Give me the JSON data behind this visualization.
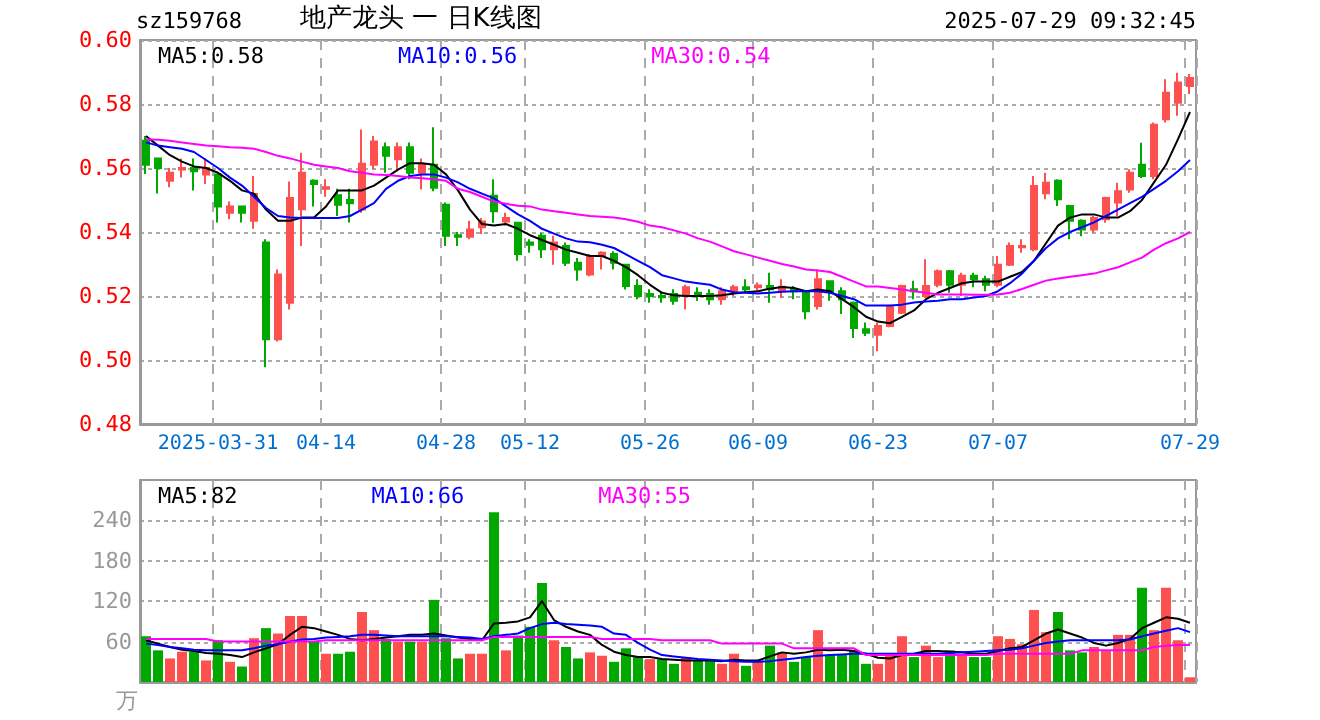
{
  "chart_data": [
    {
      "type": "candlestick",
      "title": "地产龙头 一 日K线图",
      "subtitle": "sz159768",
      "annotations": [
        "2025-07-29 09:32:45"
      ],
      "categories": [
        null,
        null,
        null,
        null,
        null,
        null,
        "2025-03-31",
        null,
        null,
        null,
        null,
        null,
        null,
        null,
        null,
        "04-14",
        null,
        null,
        null,
        null,
        null,
        null,
        null,
        null,
        null,
        "04-28",
        null,
        null,
        null,
        null,
        null,
        null,
        "05-12",
        null,
        null,
        null,
        null,
        null,
        null,
        null,
        null,
        null,
        "05-26",
        null,
        null,
        null,
        null,
        null,
        null,
        null,
        null,
        "06-09",
        null,
        null,
        null,
        null,
        null,
        null,
        null,
        null,
        null,
        "06-23",
        null,
        null,
        null,
        null,
        null,
        null,
        null,
        null,
        null,
        "07-07",
        null,
        null,
        null,
        null,
        null,
        null,
        null,
        null,
        null,
        null,
        null,
        null,
        null,
        null,
        null,
        "07-29"
      ],
      "ohlc": [
        [
          0.5685,
          0.57,
          0.5581,
          0.561
        ],
        [
          0.563,
          0.563,
          0.552,
          0.56
        ],
        [
          0.556,
          0.56,
          0.554,
          0.5585
        ],
        [
          0.5595,
          0.563,
          0.557,
          0.56
        ],
        [
          0.56,
          0.563,
          0.553,
          0.559
        ],
        [
          0.558,
          0.563,
          0.555,
          0.56
        ],
        [
          0.558,
          0.558,
          0.543,
          0.548
        ],
        [
          0.546,
          0.5495,
          0.544,
          0.548
        ],
        [
          0.548,
          0.548,
          0.543,
          0.546
        ],
        [
          0.5435,
          0.5575,
          0.541,
          0.5519
        ],
        [
          0.5367,
          0.5377,
          0.4977,
          0.5065
        ],
        [
          0.5065,
          0.5283,
          0.5058,
          0.5267
        ],
        [
          0.5179,
          0.5558,
          0.5158,
          0.5506
        ],
        [
          0.5471,
          0.5648,
          0.5356,
          0.5585
        ],
        [
          0.556,
          0.5565,
          0.548,
          0.555
        ],
        [
          0.5535,
          0.5565,
          0.551,
          0.554
        ],
        [
          0.5515,
          0.5535,
          0.545,
          0.5485
        ],
        [
          0.55,
          0.5535,
          0.543,
          0.549
        ],
        [
          0.547,
          0.572,
          0.546,
          0.5613
        ],
        [
          0.561,
          0.57,
          0.5596,
          0.5683
        ],
        [
          0.5665,
          0.568,
          0.5585,
          0.5638
        ],
        [
          0.5627,
          0.568,
          0.5596,
          0.5665
        ],
        [
          0.5665,
          0.568,
          0.5565,
          0.5585
        ],
        [
          0.5585,
          0.563,
          0.5533,
          0.561
        ],
        [
          0.561,
          0.5727,
          0.5527,
          0.5538
        ],
        [
          0.5485,
          0.5492,
          0.5356,
          0.5388
        ],
        [
          0.539,
          0.54,
          0.5356,
          0.5385
        ],
        [
          0.5385,
          0.5435,
          0.5377,
          0.5408
        ],
        [
          0.5415,
          0.5444,
          0.5394,
          0.5433
        ],
        [
          0.5513,
          0.5565,
          0.5429,
          0.5465
        ],
        [
          0.5433,
          0.546,
          0.542,
          0.5444
        ],
        [
          0.5429,
          0.5429,
          0.531,
          0.5331
        ],
        [
          0.5367,
          0.5377,
          0.5335,
          0.536
        ],
        [
          0.5388,
          0.5398,
          0.5319,
          0.5346
        ],
        [
          0.5346,
          0.5388,
          0.5298,
          0.5367
        ],
        [
          0.5356,
          0.5367,
          0.5294,
          0.5304
        ],
        [
          0.5304,
          0.5319,
          0.5248,
          0.5283
        ],
        [
          0.5267,
          0.5331,
          0.5262,
          0.5325
        ],
        [
          0.5325,
          0.534,
          0.5283,
          0.5335
        ],
        [
          0.5331,
          0.534,
          0.5283,
          0.5304
        ],
        [
          0.5298,
          0.5298,
          0.522,
          0.5231
        ],
        [
          0.5231,
          0.5252,
          0.519,
          0.52
        ],
        [
          0.5206,
          0.5221,
          0.5179,
          0.52
        ],
        [
          0.52,
          0.5215,
          0.5179,
          0.5196
        ],
        [
          0.5206,
          0.5221,
          0.5173,
          0.5185
        ],
        [
          0.52,
          0.5235,
          0.5158,
          0.5227
        ],
        [
          0.521,
          0.5227,
          0.5185,
          0.5206
        ],
        [
          0.5206,
          0.5221,
          0.5173,
          0.519
        ],
        [
          0.519,
          0.5227,
          0.5173,
          0.5215
        ],
        [
          0.5215,
          0.5235,
          0.52,
          0.5227
        ],
        [
          0.5227,
          0.5252,
          0.5212,
          0.5221
        ],
        [
          0.5227,
          0.5242,
          0.5215,
          0.5233
        ],
        [
          0.5231,
          0.5273,
          0.5179,
          0.5221
        ],
        [
          0.5215,
          0.5252,
          0.5194,
          0.5229
        ],
        [
          0.5221,
          0.5231,
          0.519,
          0.5215
        ],
        [
          0.521,
          0.5215,
          0.5127,
          0.5152
        ],
        [
          0.5169,
          0.5283,
          0.5158,
          0.5252
        ],
        [
          0.5246,
          0.5248,
          0.5185,
          0.5215
        ],
        [
          0.5215,
          0.5227,
          0.5144,
          0.519
        ],
        [
          0.5179,
          0.5183,
          0.5069,
          0.51
        ],
        [
          0.5096,
          0.5117,
          0.5075,
          0.5085
        ],
        [
          0.5079,
          0.5117,
          0.5027,
          0.5106
        ],
        [
          0.5106,
          0.5173,
          0.5102,
          0.5169
        ],
        [
          0.5148,
          0.5235,
          0.5144,
          0.5231
        ],
        [
          0.5221,
          0.5248,
          0.519,
          0.5215
        ],
        [
          0.52,
          0.5315,
          0.5194,
          0.5231
        ],
        [
          0.5235,
          0.5283,
          0.5227,
          0.5277
        ],
        [
          0.5277,
          0.5281,
          0.521,
          0.5235
        ],
        [
          0.5235,
          0.5273,
          0.52,
          0.5263
        ],
        [
          0.5263,
          0.5273,
          0.5227,
          0.5252
        ],
        [
          0.5252,
          0.5263,
          0.5215,
          0.5235
        ],
        [
          0.5235,
          0.5325,
          0.5227,
          0.5298
        ],
        [
          0.5298,
          0.5367,
          0.5294,
          0.5356
        ],
        [
          0.5352,
          0.5377,
          0.5335,
          0.5356
        ],
        [
          0.5346,
          0.5575,
          0.534,
          0.5544
        ],
        [
          0.5521,
          0.5585,
          0.5502,
          0.5554
        ],
        [
          0.556,
          0.5565,
          0.5481,
          0.5502
        ],
        [
          0.5481,
          0.5485,
          0.5377,
          0.5435
        ],
        [
          0.5435,
          0.544,
          0.5387,
          0.5408
        ],
        [
          0.5408,
          0.545,
          0.5398,
          0.5444
        ],
        [
          0.544,
          0.551,
          0.5429,
          0.5506
        ],
        [
          0.5492,
          0.5554,
          0.545,
          0.5527
        ],
        [
          0.5533,
          0.5596,
          0.5523,
          0.5585
        ],
        [
          0.561,
          0.5679,
          0.5569,
          0.5575
        ],
        [
          0.5575,
          0.5742,
          0.5565,
          0.5735
        ],
        [
          0.5752,
          0.5877,
          0.5742,
          0.5835
        ],
        [
          0.5804,
          0.5898,
          0.5763,
          0.5867
        ],
        [
          0.5856,
          0.5894,
          0.5831,
          0.5881
        ]
      ],
      "colors": [
        "#00a800",
        "#00a800",
        "#ff5050",
        "#ff5050",
        "#00a800",
        "#ff5050",
        "#00a800",
        "#ff5050",
        "#00a800",
        "#ff5050",
        "#00a800",
        "#ff5050",
        "#ff5050",
        "#ff5050",
        "#00a800",
        "#ff5050",
        "#00a800",
        "#00a800",
        "#ff5050",
        "#ff5050",
        "#00a800",
        "#ff5050",
        "#00a800",
        "#ff5050",
        "#00a800",
        "#00a800",
        "#00a800",
        "#ff5050",
        "#ff5050",
        "#00a800",
        "#ff5050",
        "#00a800",
        "#00a800",
        "#00a800",
        "#ff5050",
        "#00a800",
        "#00a800",
        "#ff5050",
        "#ff5050",
        "#00a800",
        "#00a800",
        "#00a800",
        "#00a800",
        "#00a800",
        "#00a800",
        "#ff5050",
        "#00a800",
        "#00a800",
        "#ff5050",
        "#ff5050",
        "#00a800",
        "#ff5050",
        "#00a800",
        "#ff5050",
        "#00a800",
        "#00a800",
        "#ff5050",
        "#00a800",
        "#00a800",
        "#00a800",
        "#00a800",
        "#ff5050",
        "#ff5050",
        "#ff5050",
        "#00a800",
        "#ff5050",
        "#ff5050",
        "#00a800",
        "#ff5050",
        "#00a800",
        "#00a800",
        "#ff5050",
        "#ff5050",
        "#ff5050",
        "#ff5050",
        "#ff5050",
        "#00a800",
        "#00a800",
        "#00a800",
        "#ff5050",
        "#ff5050",
        "#ff5050",
        "#ff5050",
        "#00a800",
        "#ff5050",
        "#ff5050",
        "#ff5050",
        "#ff5050"
      ],
      "series": [
        {
          "type": "line",
          "name": "MA5:0.58",
          "color": "#000000",
          "values": [
            0.57,
            0.567,
            0.564,
            0.562,
            0.5605,
            0.56,
            0.5585,
            0.556,
            0.553,
            0.552,
            0.547,
            0.5435,
            0.5435,
            0.5445,
            0.5445,
            0.548,
            0.553,
            0.553,
            0.553,
            0.5545,
            0.557,
            0.5595,
            0.5615,
            0.5615,
            0.561,
            0.558,
            0.553,
            0.547,
            0.5425,
            0.542,
            0.5425,
            0.541,
            0.539,
            0.5375,
            0.536,
            0.5345,
            0.5335,
            0.5325,
            0.5325,
            0.531,
            0.529,
            0.5265,
            0.5235,
            0.521,
            0.5202,
            0.52,
            0.52,
            0.52,
            0.5202,
            0.5208,
            0.5212,
            0.5215,
            0.5223,
            0.5228,
            0.5225,
            0.5215,
            0.522,
            0.5215,
            0.519,
            0.5165,
            0.5135,
            0.512,
            0.5115,
            0.5135,
            0.5155,
            0.519,
            0.521,
            0.5225,
            0.524,
            0.5245,
            0.5245,
            0.5245,
            0.526,
            0.5275,
            0.531,
            0.5365,
            0.542,
            0.5445,
            0.5455,
            0.5455,
            0.5445,
            0.5445,
            0.5465,
            0.55,
            0.5555,
            0.561,
            0.569,
            0.5775
          ]
        },
        {
          "type": "line",
          "name": "MA10:0.56",
          "color": "#0000ff",
          "values": [
            0.568,
            0.567,
            0.5665,
            0.566,
            0.565,
            0.5625,
            0.56,
            0.557,
            0.5545,
            0.551,
            0.5475,
            0.545,
            0.5445,
            0.5444,
            0.5444,
            0.5444,
            0.5444,
            0.545,
            0.547,
            0.549,
            0.5535,
            0.556,
            0.5575,
            0.558,
            0.558,
            0.557,
            0.5555,
            0.5535,
            0.552,
            0.5505,
            0.548,
            0.5455,
            0.5435,
            0.541,
            0.5395,
            0.538,
            0.537,
            0.5368,
            0.536,
            0.535,
            0.533,
            0.531,
            0.529,
            0.5265,
            0.5255,
            0.5245,
            0.524,
            0.5235,
            0.522,
            0.5212,
            0.521,
            0.5208,
            0.521,
            0.5213,
            0.5215,
            0.5215,
            0.5215,
            0.521,
            0.52,
            0.519,
            0.517,
            0.517,
            0.517,
            0.5173,
            0.518,
            0.5183,
            0.5185,
            0.519,
            0.519,
            0.5195,
            0.52,
            0.5215,
            0.524,
            0.527,
            0.531,
            0.535,
            0.538,
            0.54,
            0.5415,
            0.543,
            0.545,
            0.547,
            0.549,
            0.551,
            0.5535,
            0.556,
            0.559,
            0.5625
          ]
        },
        {
          "type": "line",
          "name": "MA30:0.54",
          "color": "#ff00ff",
          "values": [
            0.569,
            0.5688,
            0.5685,
            0.568,
            0.5675,
            0.567,
            0.5668,
            0.5665,
            0.5663,
            0.566,
            0.565,
            0.5638,
            0.563,
            0.562,
            0.561,
            0.5605,
            0.56,
            0.559,
            0.5585,
            0.558,
            0.5578,
            0.5575,
            0.557,
            0.5568,
            0.5565,
            0.556,
            0.5535,
            0.5525,
            0.551,
            0.5495,
            0.5488,
            0.5482,
            0.548,
            0.547,
            0.5465,
            0.546,
            0.5455,
            0.545,
            0.5448,
            0.5445,
            0.544,
            0.5432,
            0.542,
            0.5415,
            0.5405,
            0.5395,
            0.538,
            0.537,
            0.5355,
            0.534,
            0.533,
            0.532,
            0.531,
            0.53,
            0.5292,
            0.5283,
            0.528,
            0.5275,
            0.526,
            0.5245,
            0.523,
            0.523,
            0.5225,
            0.522,
            0.5215,
            0.521,
            0.5205,
            0.5205,
            0.5205,
            0.5204,
            0.5204,
            0.5205,
            0.521,
            0.5222,
            0.5235,
            0.5248,
            0.5255,
            0.526,
            0.5265,
            0.527,
            0.528,
            0.529,
            0.5305,
            0.532,
            0.5345,
            0.5365,
            0.538,
            0.54
          ]
        }
      ],
      "ylim": [
        0.48,
        0.6
      ],
      "yticks": [
        {
          "value": 0.48,
          "label": "0.48"
        },
        {
          "value": 0.5,
          "label": "0.50"
        },
        {
          "value": 0.52,
          "label": "0.52"
        },
        {
          "value": 0.54,
          "label": "0.54"
        },
        {
          "value": 0.56,
          "label": "0.56"
        },
        {
          "value": 0.58,
          "label": "0.58"
        },
        {
          "value": 0.6,
          "label": "0.60"
        }
      ],
      "grid": true,
      "legend": "top"
    },
    {
      "type": "bar",
      "annotations": [
        "万"
      ],
      "tick_labels": "y",
      "categories": [
        null,
        null,
        null,
        null,
        null,
        null,
        null,
        null,
        null,
        null,
        null,
        null,
        null,
        null,
        null,
        null,
        null,
        null,
        null,
        null,
        null,
        null,
        null,
        null,
        null,
        null,
        null,
        null,
        null,
        null,
        null,
        null,
        null,
        null,
        null,
        null,
        null,
        null,
        null,
        null,
        null,
        null,
        null,
        null,
        null,
        null,
        null,
        null,
        null,
        null,
        null,
        null,
        null,
        null,
        null,
        null,
        null,
        null,
        null,
        null,
        null,
        null,
        null,
        null,
        null,
        null,
        null,
        null,
        null,
        null,
        null,
        null,
        null,
        null,
        null,
        null,
        null,
        null,
        null,
        null,
        null,
        null,
        null,
        null,
        null,
        null,
        null,
        null
      ],
      "values": [
        68,
        47,
        35,
        45,
        45,
        32,
        62,
        30,
        23,
        65,
        80,
        72,
        98,
        98,
        60,
        42,
        42,
        45,
        104,
        77,
        64,
        60,
        60,
        60,
        122,
        65,
        35,
        42,
        42,
        252,
        47,
        69,
        82,
        147,
        62,
        52,
        35,
        44,
        39,
        30,
        50,
        37,
        34,
        34,
        27,
        37,
        32,
        32,
        27,
        42,
        24,
        32,
        54,
        44,
        30,
        37,
        77,
        40,
        40,
        47,
        27,
        27,
        40,
        68,
        37,
        54,
        37,
        47,
        42,
        37,
        37,
        68,
        64,
        56,
        107,
        74,
        104,
        47,
        44,
        52,
        47,
        70,
        70,
        140,
        77,
        140,
        62,
        7
      ],
      "colors": [
        "#00a800",
        "#00a800",
        "#ff5050",
        "#ff5050",
        "#00a800",
        "#ff5050",
        "#00a800",
        "#ff5050",
        "#00a800",
        "#ff5050",
        "#00a800",
        "#ff5050",
        "#ff5050",
        "#ff5050",
        "#00a800",
        "#ff5050",
        "#00a800",
        "#00a800",
        "#ff5050",
        "#ff5050",
        "#00a800",
        "#ff5050",
        "#00a800",
        "#ff5050",
        "#00a800",
        "#00a800",
        "#00a800",
        "#ff5050",
        "#ff5050",
        "#00a800",
        "#ff5050",
        "#00a800",
        "#00a800",
        "#00a800",
        "#ff5050",
        "#00a800",
        "#00a800",
        "#ff5050",
        "#ff5050",
        "#00a800",
        "#00a800",
        "#00a800",
        "#ff5050",
        "#00a800",
        "#00a800",
        "#ff5050",
        "#00a800",
        "#00a800",
        "#ff5050",
        "#ff5050",
        "#00a800",
        "#ff5050",
        "#00a800",
        "#ff5050",
        "#00a800",
        "#00a800",
        "#ff5050",
        "#00a800",
        "#00a800",
        "#00a800",
        "#00a800",
        "#ff5050",
        "#ff5050",
        "#ff5050",
        "#00a800",
        "#ff5050",
        "#ff5050",
        "#00a800",
        "#ff5050",
        "#00a800",
        "#00a800",
        "#ff5050",
        "#ff5050",
        "#ff5050",
        "#ff5050",
        "#ff5050",
        "#00a800",
        "#00a800",
        "#00a800",
        "#ff5050",
        "#ff5050",
        "#ff5050",
        "#ff5050",
        "#00a800",
        "#ff5050",
        "#ff5050",
        "#ff5050",
        "#ff5050"
      ],
      "series": [
        {
          "type": "line",
          "name": "MA5:82",
          "color": "#000000",
          "values": [
            62,
            57,
            52,
            48,
            46,
            43,
            42,
            40,
            37,
            44,
            50,
            56,
            70,
            82,
            80,
            75,
            70,
            64,
            62,
            64,
            66,
            68,
            70,
            70,
            72,
            69,
            66,
            64,
            62,
            87,
            88,
            90,
            96,
            120,
            92,
            82,
            75,
            70,
            55,
            45,
            40,
            37,
            37,
            34,
            33,
            32,
            32,
            32,
            31,
            33,
            32,
            32,
            38,
            44,
            42,
            44,
            48,
            47,
            48,
            46,
            42,
            36,
            35,
            40,
            42,
            46,
            46,
            45,
            44,
            42,
            42,
            46,
            50,
            52,
            62,
            72,
            78,
            72,
            66,
            58,
            54,
            58,
            64,
            80,
            88,
            96,
            94,
            88
          ]
        },
        {
          "type": "line",
          "name": "MA10:66",
          "color": "#0000ff",
          "values": [
            57,
            55,
            52,
            50,
            48,
            47,
            47,
            47,
            47,
            50,
            54,
            56,
            60,
            63,
            64,
            66,
            67,
            68,
            70,
            70,
            69,
            68,
            68,
            68,
            68,
            68,
            67,
            66,
            64,
            68,
            70,
            72,
            80,
            86,
            88,
            86,
            85,
            84,
            82,
            72,
            70,
            58,
            48,
            40,
            38,
            36,
            34,
            33,
            32,
            31,
            30,
            30,
            31,
            33,
            35,
            37,
            39,
            40,
            41,
            42,
            42,
            42,
            42,
            42,
            42,
            42,
            42,
            43,
            44,
            45,
            46,
            47,
            48,
            50,
            54,
            58,
            60,
            62,
            62,
            62,
            62,
            62,
            63,
            68,
            72,
            76,
            80,
            74
          ]
        },
        {
          "type": "line",
          "name": "MA30:55",
          "color": "#ff00ff",
          "values": [
            64,
            64,
            64,
            64,
            64,
            64,
            60,
            60,
            60,
            60,
            60,
            60,
            60,
            60,
            60,
            62,
            62,
            62,
            62,
            62,
            62,
            62,
            62,
            62,
            62,
            62,
            62,
            62,
            62,
            67,
            67,
            67,
            67,
            67,
            67,
            67,
            67,
            67,
            64,
            64,
            64,
            64,
            64,
            62,
            62,
            62,
            62,
            62,
            57,
            57,
            57,
            57,
            57,
            57,
            50,
            50,
            50,
            50,
            50,
            50,
            40,
            40,
            40,
            40,
            40,
            40,
            40,
            40,
            40,
            40,
            40,
            42,
            42,
            42,
            42,
            42,
            42,
            42,
            47,
            47,
            47,
            47,
            47,
            47,
            52,
            54,
            55,
            55
          ]
        }
      ],
      "ylim": [
        0,
        300
      ],
      "yticks": [
        60,
        120,
        180,
        240
      ],
      "grid": true,
      "legend": "top"
    }
  ]
}
